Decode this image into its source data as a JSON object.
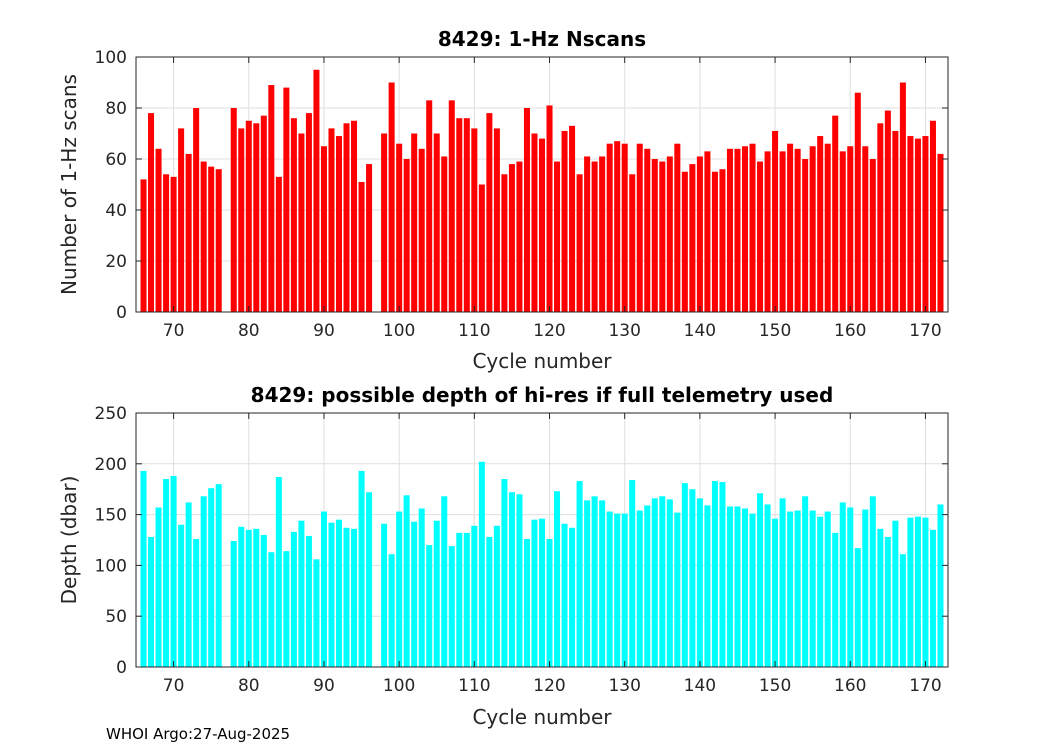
{
  "footer": "WHOI Argo:27-Aug-2025",
  "chart_data": [
    {
      "type": "bar",
      "title": "8429: 1-Hz Nscans",
      "xlabel": "Cycle number",
      "ylabel": "Number of 1-Hz scans",
      "color": "#ff0000",
      "xlim": [
        65,
        173
      ],
      "ylim": [
        0,
        100
      ],
      "xticks": [
        70,
        80,
        90,
        100,
        110,
        120,
        130,
        140,
        150,
        160,
        170
      ],
      "yticks": [
        0,
        20,
        40,
        60,
        80,
        100
      ],
      "x": [
        66,
        67,
        68,
        69,
        70,
        71,
        72,
        73,
        74,
        75,
        76,
        78,
        79,
        80,
        81,
        82,
        83,
        84,
        85,
        86,
        87,
        88,
        89,
        90,
        91,
        92,
        93,
        94,
        95,
        96,
        98,
        99,
        100,
        101,
        102,
        103,
        104,
        105,
        106,
        107,
        108,
        109,
        110,
        111,
        112,
        113,
        114,
        115,
        116,
        117,
        118,
        119,
        120,
        121,
        122,
        123,
        124,
        125,
        126,
        127,
        128,
        129,
        130,
        131,
        132,
        133,
        134,
        135,
        136,
        137,
        138,
        139,
        140,
        141,
        142,
        143,
        144,
        145,
        146,
        147,
        148,
        149,
        150,
        151,
        152,
        153,
        154,
        155,
        156,
        157,
        158,
        159,
        160,
        161,
        162,
        163,
        164,
        165,
        166,
        167,
        168,
        169,
        170,
        171,
        172
      ],
      "values": [
        52,
        78,
        64,
        54,
        53,
        72,
        62,
        80,
        59,
        57,
        56,
        80,
        72,
        75,
        74,
        77,
        89,
        53,
        88,
        76,
        70,
        78,
        95,
        65,
        72,
        69,
        74,
        75,
        51,
        58,
        70,
        90,
        66,
        60,
        70,
        64,
        83,
        70,
        61,
        83,
        76,
        76,
        72,
        50,
        78,
        72,
        54,
        58,
        59,
        80,
        70,
        68,
        81,
        59,
        71,
        73,
        54,
        61,
        59,
        61,
        66,
        67,
        66,
        54,
        66,
        64,
        60,
        59,
        61,
        66,
        55,
        58,
        61,
        63,
        55,
        56,
        64,
        64,
        65,
        66,
        59,
        63,
        71,
        63,
        66,
        64,
        60,
        65,
        69,
        66,
        77,
        63,
        65,
        86,
        65,
        60,
        74,
        79,
        71,
        90,
        69,
        68,
        69,
        75,
        62
      ]
    },
    {
      "type": "bar",
      "title": "8429: possible depth of hi-res if full telemetry used",
      "xlabel": "Cycle number",
      "ylabel": "Depth (dbar)",
      "color": "#00ffff",
      "xlim": [
        65,
        173
      ],
      "ylim": [
        0,
        250
      ],
      "xticks": [
        70,
        80,
        90,
        100,
        110,
        120,
        130,
        140,
        150,
        160,
        170
      ],
      "yticks": [
        0,
        50,
        100,
        150,
        200,
        250
      ],
      "x": [
        66,
        67,
        68,
        69,
        70,
        71,
        72,
        73,
        74,
        75,
        76,
        78,
        79,
        80,
        81,
        82,
        83,
        84,
        85,
        86,
        87,
        88,
        89,
        90,
        91,
        92,
        93,
        94,
        95,
        96,
        98,
        99,
        100,
        101,
        102,
        103,
        104,
        105,
        106,
        107,
        108,
        109,
        110,
        111,
        112,
        113,
        114,
        115,
        116,
        117,
        118,
        119,
        120,
        121,
        122,
        123,
        124,
        125,
        126,
        127,
        128,
        129,
        130,
        131,
        132,
        133,
        134,
        135,
        136,
        137,
        138,
        139,
        140,
        141,
        142,
        143,
        144,
        145,
        146,
        147,
        148,
        149,
        150,
        151,
        152,
        153,
        154,
        155,
        156,
        157,
        158,
        159,
        160,
        161,
        162,
        163,
        164,
        165,
        166,
        167,
        168,
        169,
        170,
        171,
        172
      ],
      "values": [
        193,
        128,
        157,
        185,
        188,
        140,
        162,
        126,
        168,
        176,
        180,
        124,
        138,
        135,
        136,
        130,
        113,
        187,
        114,
        133,
        144,
        129,
        106,
        153,
        142,
        145,
        137,
        136,
        193,
        172,
        141,
        111,
        153,
        169,
        143,
        156,
        120,
        144,
        168,
        119,
        132,
        132,
        139,
        202,
        128,
        139,
        185,
        172,
        170,
        126,
        145,
        146,
        126,
        173,
        141,
        137,
        183,
        164,
        168,
        164,
        153,
        151,
        151,
        184,
        154,
        159,
        166,
        168,
        165,
        152,
        181,
        175,
        166,
        159,
        183,
        182,
        158,
        158,
        156,
        151,
        171,
        160,
        146,
        166,
        153,
        154,
        168,
        154,
        148,
        153,
        132,
        162,
        157,
        117,
        155,
        168,
        136,
        128,
        144,
        111,
        147,
        148,
        147,
        135,
        160
      ]
    }
  ]
}
